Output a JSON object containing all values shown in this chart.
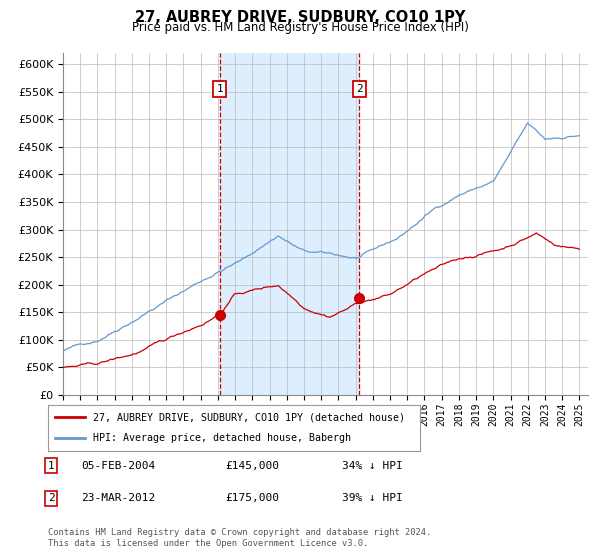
{
  "title": "27, AUBREY DRIVE, SUDBURY, CO10 1PY",
  "subtitle": "Price paid vs. HM Land Registry's House Price Index (HPI)",
  "ylim": [
    0,
    620000
  ],
  "yticks": [
    0,
    50000,
    100000,
    150000,
    200000,
    250000,
    300000,
    350000,
    400000,
    450000,
    500000,
    550000,
    600000
  ],
  "xlim_start": 1995.0,
  "xlim_end": 2025.5,
  "sale1_x": 2004.1,
  "sale1_y": 145000,
  "sale2_x": 2012.22,
  "sale2_y": 175000,
  "line_color_red": "#cc0000",
  "line_color_blue": "#6699cc",
  "marker_box_color": "#cc0000",
  "shade_color": "#ddeeff",
  "grid_color": "#bbbbbb",
  "background_color": "#ffffff",
  "legend_label1": "27, AUBREY DRIVE, SUDBURY, CO10 1PY (detached house)",
  "legend_label2": "HPI: Average price, detached house, Babergh",
  "note_label1": "05-FEB-2004",
  "note_price1": "£145,000",
  "note_hpi1": "34% ↓ HPI",
  "note_label2": "23-MAR-2012",
  "note_price2": "£175,000",
  "note_hpi2": "39% ↓ HPI",
  "footer": "Contains HM Land Registry data © Crown copyright and database right 2024.\nThis data is licensed under the Open Government Licence v3.0."
}
